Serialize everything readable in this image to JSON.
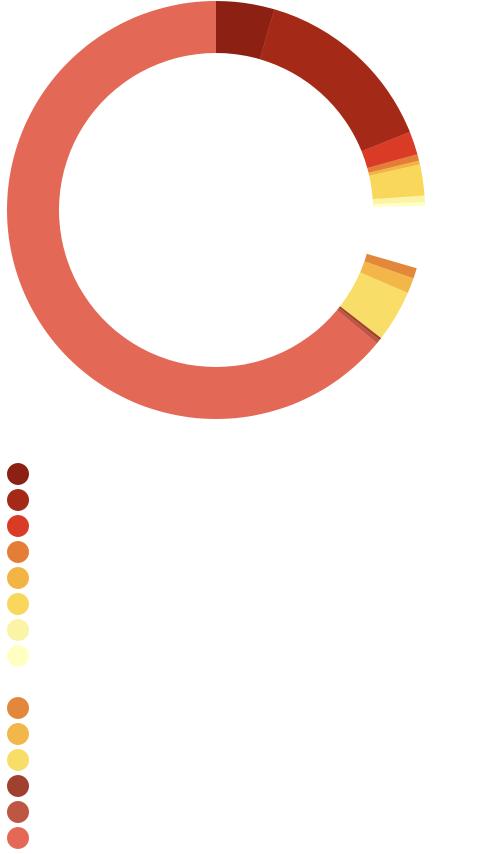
{
  "chart_data": {
    "type": "pie",
    "variant": "donut",
    "title": "",
    "legend_placement": "bottom-left",
    "slices": [
      {
        "label": "",
        "value": 4.5,
        "color": "#8B2013"
      },
      {
        "label": "",
        "value": 14.4,
        "color": "#A42A17"
      },
      {
        "label": "",
        "value": 1.8,
        "color": "#DA3B26"
      },
      {
        "label": "",
        "value": 0.5,
        "color": "#E47D35"
      },
      {
        "label": "",
        "value": 0.3,
        "color": "#F2B545"
      },
      {
        "label": "",
        "value": 2.4,
        "color": "#F8D75B"
      },
      {
        "label": "",
        "value": 0.5,
        "color": "#FBF4A4"
      },
      {
        "label": "",
        "value": 0.3,
        "color": "#FFFFC4"
      },
      {
        "label": "",
        "value": 4.8,
        "color": "#FFFFFF"
      },
      {
        "label": "",
        "value": 0.8,
        "color": "#E3883B"
      },
      {
        "label": "",
        "value": 1.2,
        "color": "#F3B648"
      },
      {
        "label": "",
        "value": 4.0,
        "color": "#F9DD69"
      },
      {
        "label": "",
        "value": 0.2,
        "color": "#A0402F"
      },
      {
        "label": "",
        "value": 0.3,
        "color": "#BD5642"
      },
      {
        "label": "",
        "value": 64.0,
        "color": "#E36856"
      }
    ]
  }
}
